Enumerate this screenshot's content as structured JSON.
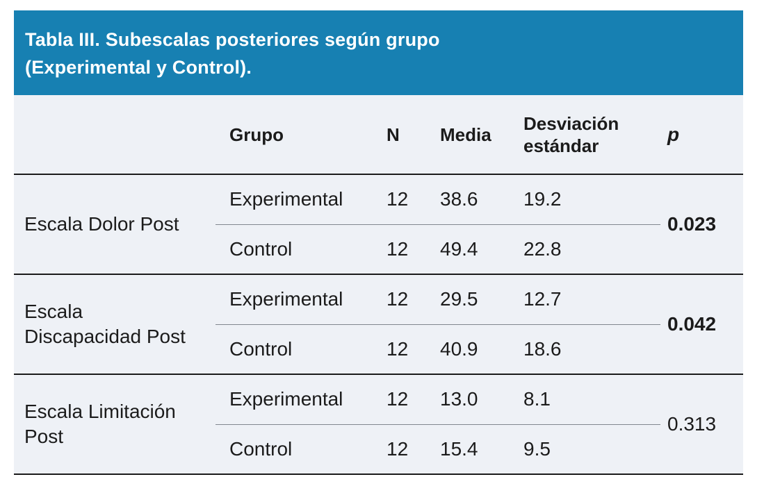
{
  "title": {
    "line1": "Tabla III. Subescalas posteriores según grupo",
    "line2": "(Experimental y Control)."
  },
  "colors": {
    "header_bg": "#1780B2",
    "table_bg": "#EEF1F6",
    "title_text": "#FFFFFF",
    "text": "#1B1B1B",
    "strong_line": "#1A1A1A",
    "light_line": "#80868E",
    "page_bg": "#FFFFFF"
  },
  "table": {
    "columns": [
      "",
      "Grupo",
      "N",
      "Media",
      "Desviación estándar",
      "p"
    ],
    "groups": [
      {
        "label": "Escala Dolor Post",
        "p": "0.023",
        "p_bold": true,
        "rows": [
          {
            "grupo": "Experimental",
            "n": "12",
            "media": "38.6",
            "de": "19.2"
          },
          {
            "grupo": "Control",
            "n": "12",
            "media": "49.4",
            "de": "22.8"
          }
        ]
      },
      {
        "label": "Escala Discapacidad Post",
        "p": "0.042",
        "p_bold": true,
        "rows": [
          {
            "grupo": "Experimental",
            "n": "12",
            "media": "29.5",
            "de": "12.7"
          },
          {
            "grupo": "Control",
            "n": "12",
            "media": "40.9",
            "de": "18.6"
          }
        ]
      },
      {
        "label": "Escala Limitación Post",
        "p": "0.313",
        "p_bold": false,
        "rows": [
          {
            "grupo": "Experimental",
            "n": "12",
            "media": "13.0",
            "de": "8.1"
          },
          {
            "grupo": "Control",
            "n": "12",
            "media": "15.4",
            "de": "9.5"
          }
        ]
      }
    ]
  }
}
